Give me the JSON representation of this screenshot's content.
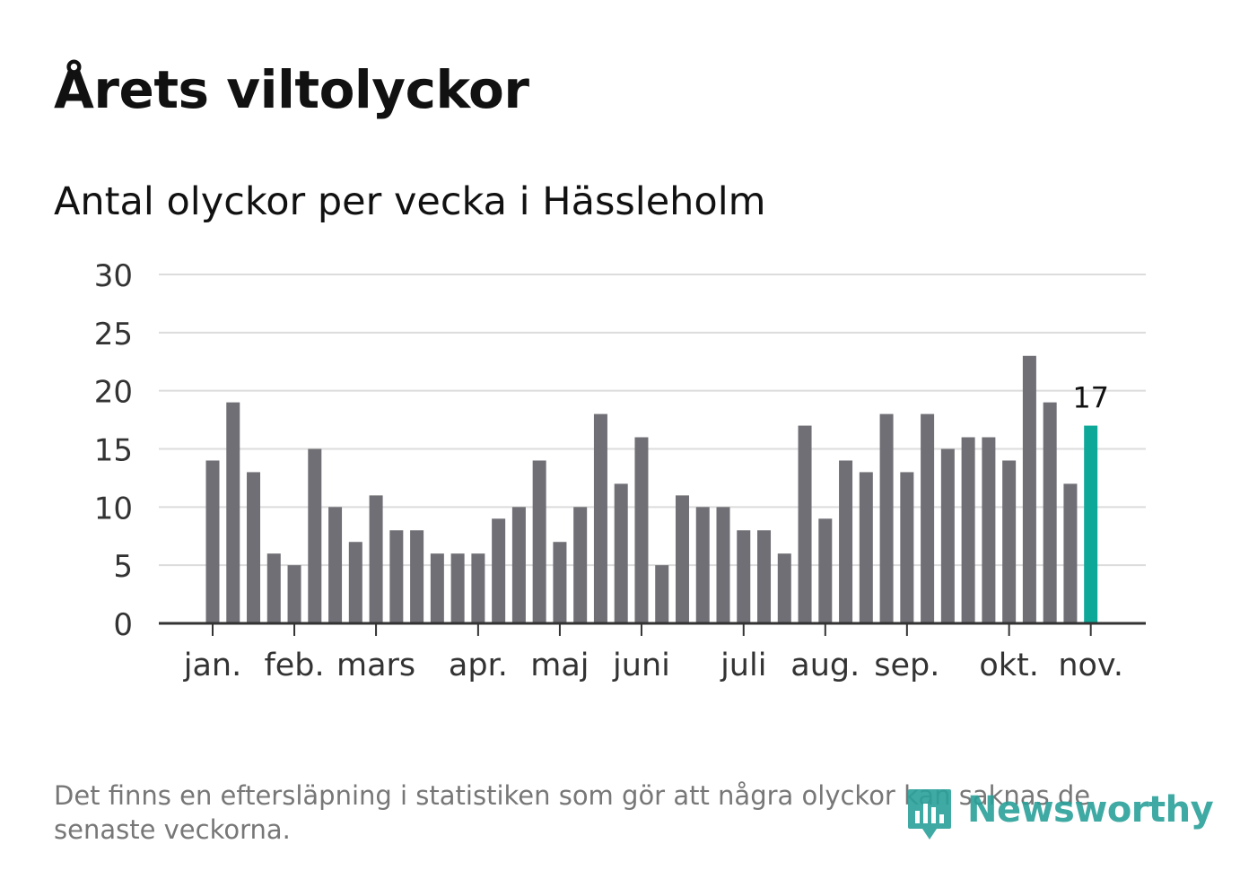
{
  "header": {
    "title": "Årets viltolyckor",
    "subtitle": "Antal olyckor per vecka i Hässleholm"
  },
  "chart_data": {
    "type": "bar",
    "title": "Årets viltolyckor",
    "subtitle": "Antal olyckor per vecka i Hässleholm",
    "xlabel": "",
    "ylabel": "",
    "ylim": [
      0,
      30
    ],
    "yticks": [
      0,
      5,
      10,
      15,
      20,
      25,
      30
    ],
    "grid": true,
    "values": [
      14,
      19,
      13,
      6,
      5,
      15,
      10,
      7,
      11,
      8,
      8,
      6,
      6,
      6,
      9,
      10,
      14,
      7,
      10,
      18,
      12,
      16,
      5,
      11,
      10,
      10,
      8,
      8,
      6,
      17,
      9,
      14,
      13,
      18,
      13,
      18,
      15,
      16,
      16,
      14,
      23,
      19,
      12,
      17
    ],
    "month_labels": [
      {
        "label": "jan.",
        "week_index": 0
      },
      {
        "label": "feb.",
        "week_index": 4
      },
      {
        "label": "mars",
        "week_index": 8
      },
      {
        "label": "apr.",
        "week_index": 13
      },
      {
        "label": "maj",
        "week_index": 17
      },
      {
        "label": "juni",
        "week_index": 21
      },
      {
        "label": "juli",
        "week_index": 26
      },
      {
        "label": "aug.",
        "week_index": 30
      },
      {
        "label": "sep.",
        "week_index": 34
      },
      {
        "label": "okt.",
        "week_index": 39
      },
      {
        "label": "nov.",
        "week_index": 43
      }
    ],
    "highlight_index": 43,
    "highlight_label": "17",
    "bar_color": "#6f6f75",
    "highlight_color": "#0ea899"
  },
  "footer": {
    "note": "Det finns en eftersläpning i statistiken som gör att några olyckor kan saknas de senaste veckorna.",
    "brand": "Newsworthy",
    "brand_color": "#2aa19a"
  }
}
